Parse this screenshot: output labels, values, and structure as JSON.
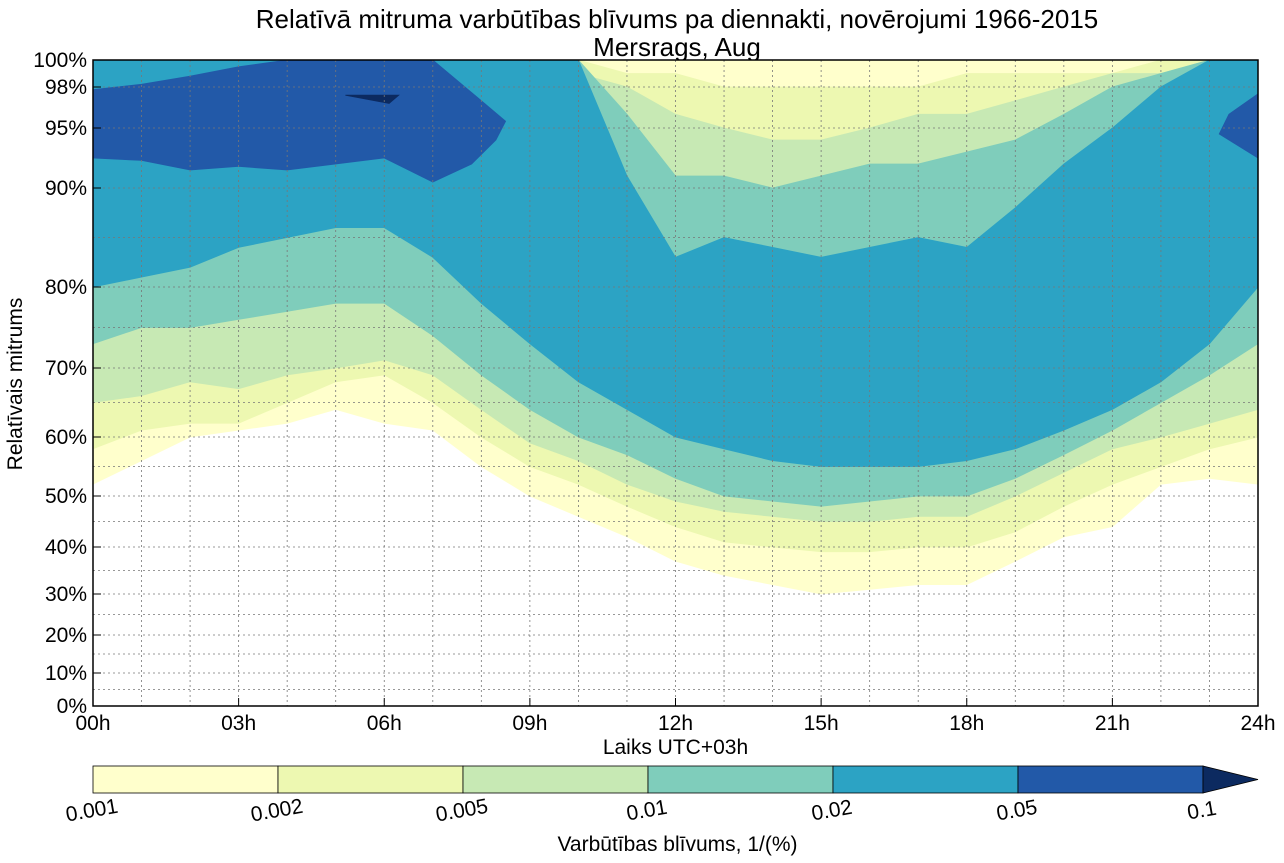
{
  "chart_data": {
    "type": "contourf",
    "title": "Relatīvā mitruma varbūtības blīvums pa diennakti, novērojumi 1966-2015",
    "subtitle": "Mersrags, Aug",
    "xlabel": "Laiks UTC+03h",
    "ylabel": "Relatīvais mitrums",
    "x_ticks": [
      "00h",
      "03h",
      "06h",
      "09h",
      "12h",
      "15h",
      "18h",
      "21h",
      "24h"
    ],
    "x_range": [
      0,
      24
    ],
    "y_ticks": [
      {
        "value": 0,
        "label": "0%"
      },
      {
        "value": 10,
        "label": "10%"
      },
      {
        "value": 20,
        "label": "20%"
      },
      {
        "value": 30,
        "label": "30%"
      },
      {
        "value": 40,
        "label": "40%"
      },
      {
        "value": 50,
        "label": "50%"
      },
      {
        "value": 60,
        "label": "60%"
      },
      {
        "value": 70,
        "label": "70%"
      },
      {
        "value": 80,
        "label": "80%"
      },
      {
        "value": 90,
        "label": "90%"
      },
      {
        "value": 95,
        "label": "95%"
      },
      {
        "value": 98,
        "label": "98%"
      },
      {
        "value": 100,
        "label": "100%"
      }
    ],
    "y_range": [
      0,
      100
    ],
    "grid": true,
    "levels": [
      0.001,
      0.002,
      0.005,
      0.01,
      0.02,
      0.05,
      0.1
    ],
    "level_colors": [
      "#ffffcc",
      "#edf8b1",
      "#c7e9b4",
      "#7fcdbb",
      "#2ca3c4",
      "#2259a8",
      "#0c2a60"
    ],
    "colorbar": {
      "label": "Varbūtības blīvums, 1/(%)",
      "tick_labels": [
        "0.001",
        "0.002",
        "0.005",
        "0.01",
        "0.02",
        "0.05",
        "0.1"
      ],
      "extend": "max",
      "placement": "bottom"
    },
    "bands": {
      "hours": [
        0,
        1,
        2,
        3,
        4,
        5,
        6,
        7,
        8,
        9,
        10,
        11,
        12,
        13,
        14,
        15,
        16,
        17,
        18,
        19,
        20,
        21,
        22,
        23,
        24
      ],
      "lower_0_001": [
        52,
        56,
        60,
        61,
        62,
        64,
        62,
        61,
        55,
        50,
        46,
        42,
        37,
        34,
        32,
        30,
        31,
        32,
        32,
        37,
        42,
        44,
        52,
        53,
        52
      ],
      "lower_0_002": [
        58,
        61,
        62,
        62,
        65,
        68,
        69,
        65,
        60,
        55,
        52,
        48,
        44,
        41,
        40,
        39,
        39,
        40,
        40,
        43,
        48,
        52,
        55,
        58,
        60
      ],
      "lower_0_005": [
        65,
        66,
        68,
        67,
        69,
        70,
        71,
        69,
        64,
        59,
        56,
        52,
        49,
        47,
        46,
        45,
        45,
        46,
        46,
        50,
        54,
        58,
        60,
        62,
        64
      ],
      "lower_0_01": [
        73,
        75,
        75,
        76,
        77,
        78,
        78,
        74,
        69,
        64,
        60,
        57,
        53,
        50,
        49,
        48,
        49,
        50,
        50,
        53,
        57,
        61,
        65,
        69,
        73
      ],
      "lower_0_02": [
        80,
        81,
        82,
        84,
        85,
        86,
        86,
        83,
        78,
        73,
        68,
        64,
        60,
        58,
        56,
        55,
        55,
        55,
        56,
        58,
        61,
        64,
        68,
        73,
        80
      ],
      "upper_0_02": [
        100,
        100,
        100,
        100,
        100,
        100,
        100,
        100,
        100,
        100,
        100,
        91,
        83,
        85,
        84,
        83,
        84,
        85,
        84,
        88,
        92,
        95,
        98,
        100,
        100
      ],
      "upper_0_01": [
        100,
        100,
        100,
        100,
        100,
        100,
        100,
        100,
        100,
        100,
        100,
        96,
        91,
        91,
        90,
        91,
        92,
        92,
        93,
        94,
        96,
        98,
        99,
        100,
        100
      ],
      "upper_0_005": [
        100,
        100,
        100,
        100,
        100,
        100,
        100,
        100,
        100,
        100,
        99,
        98,
        96,
        95,
        94,
        94,
        95,
        96,
        96,
        97,
        98,
        99,
        99,
        100,
        100
      ],
      "upper_0_002": [
        100,
        100,
        100,
        100,
        100,
        100,
        100,
        100,
        100,
        100,
        100,
        99,
        99,
        98,
        98,
        98,
        98,
        98,
        99,
        99,
        99,
        99,
        100,
        100,
        100
      ],
      "blob_0_05": {
        "hours": [
          0,
          1,
          2,
          3,
          4,
          5,
          6,
          7,
          8,
          8.5,
          8.3,
          7.8,
          7,
          6,
          5,
          4,
          3,
          2,
          1,
          0
        ],
        "rh": [
          97.8,
          98.2,
          98.8,
          99.5,
          100,
          100,
          100,
          100,
          97,
          95.5,
          94,
          92,
          90.5,
          92.5,
          92,
          91.5,
          91.8,
          91.5,
          92.3,
          92.5
        ]
      },
      "blob_0_1": {
        "hours": [
          5.2,
          6.3,
          6.1,
          5.2
        ],
        "rh": [
          97.4,
          97.4,
          96.8,
          97.4
        ]
      },
      "blob_0_05_right": {
        "hours": [
          24,
          23.4,
          23.2,
          24
        ],
        "rh": [
          97.5,
          96,
          94.5,
          92.5
        ]
      }
    }
  }
}
